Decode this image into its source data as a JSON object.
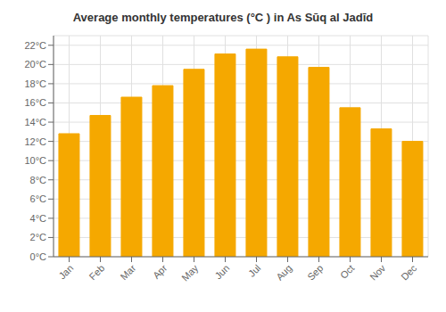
{
  "chart_data": {
    "type": "bar",
    "title": "Average monthly temperatures (°C ) in As Sūq al Jadīd",
    "categories": [
      "Jan",
      "Feb",
      "Mar",
      "Apr",
      "May",
      "Jun",
      "Jul",
      "Aug",
      "Sep",
      "Oct",
      "Nov",
      "Dec"
    ],
    "values": [
      12.8,
      14.7,
      16.6,
      17.8,
      19.5,
      21.1,
      21.6,
      20.8,
      19.7,
      15.5,
      13.3,
      12.0
    ],
    "color": "#F5A800",
    "ylim": [
      0,
      23
    ],
    "yticks": [
      {
        "value": 0,
        "label": "0°C"
      },
      {
        "value": 2,
        "label": "2°C"
      },
      {
        "value": 4,
        "label": "4°C"
      },
      {
        "value": 6,
        "label": "6°C"
      },
      {
        "value": 8,
        "label": "8°C"
      },
      {
        "value": 10,
        "label": "10°C"
      },
      {
        "value": 12,
        "label": "12°C"
      },
      {
        "value": 14,
        "label": "14°C"
      },
      {
        "value": 16,
        "label": "16°C"
      },
      {
        "value": 18,
        "label": "18°C"
      },
      {
        "value": 20,
        "label": "20°C"
      },
      {
        "value": 22,
        "label": "22°C"
      }
    ],
    "grid": true
  }
}
